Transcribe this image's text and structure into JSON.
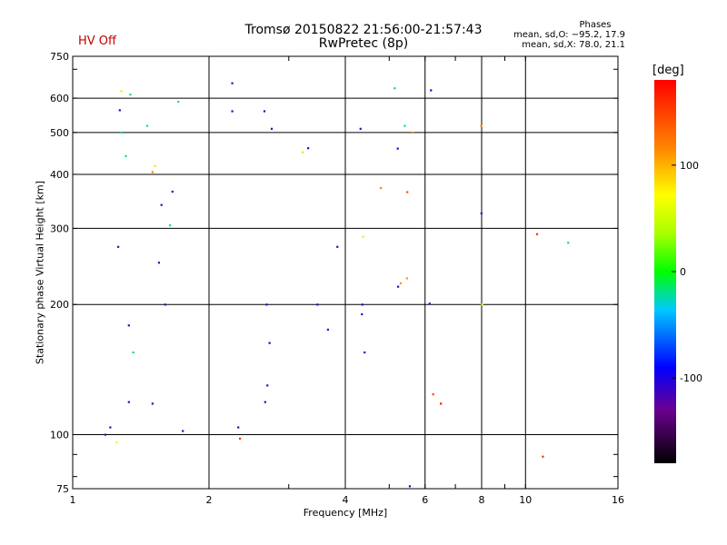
{
  "header": {
    "title": "Tromsø 20150822 21:56:00-21:57:43",
    "subtitle": "RwPretec (8p)",
    "hv_status": "HV Off",
    "hv_color": "#c00000"
  },
  "phases_info": {
    "heading": "Phases",
    "o_line": "mean, sd,O: −95.2, 17.9",
    "x_line": "mean, sd,X: 78.0, 21.1"
  },
  "chart_data": {
    "type": "scatter",
    "xlabel": "Frequency [MHz]",
    "ylabel": "Stationary phase Virtual Height [km]",
    "x_scale": "log",
    "y_scale": "log",
    "xlim": [
      1,
      16
    ],
    "ylim": [
      75,
      750
    ],
    "x_ticks": [
      1,
      2,
      4,
      6,
      8,
      10,
      16
    ],
    "y_ticks": [
      75,
      100,
      200,
      300,
      400,
      500,
      600,
      750
    ],
    "grid": true,
    "colorbar": {
      "label": "[deg]",
      "ticks": [
        100,
        0,
        -100
      ],
      "range": [
        -180,
        180
      ]
    },
    "series": [
      {
        "values": [
          {
            "x": 1.18,
            "y": 100,
            "phase": -110
          },
          {
            "x": 1.21,
            "y": 104,
            "phase": -110
          },
          {
            "x": 1.25,
            "y": 96,
            "phase": 60
          },
          {
            "x": 1.26,
            "y": 272,
            "phase": -120
          },
          {
            "x": 1.27,
            "y": 563,
            "phase": -110
          },
          {
            "x": 1.28,
            "y": 500,
            "phase": -15
          },
          {
            "x": 1.31,
            "y": 441,
            "phase": -15
          },
          {
            "x": 1.33,
            "y": 119,
            "phase": -110
          },
          {
            "x": 1.33,
            "y": 179,
            "phase": -110
          },
          {
            "x": 1.36,
            "y": 155,
            "phase": -15
          },
          {
            "x": 1.28,
            "y": 623,
            "phase": 80
          },
          {
            "x": 1.34,
            "y": 612,
            "phase": -15
          },
          {
            "x": 1.5,
            "y": 405,
            "phase": 120
          },
          {
            "x": 1.52,
            "y": 418,
            "phase": 80
          },
          {
            "x": 1.46,
            "y": 518,
            "phase": -15
          },
          {
            "x": 1.5,
            "y": 118,
            "phase": -110
          },
          {
            "x": 1.55,
            "y": 250,
            "phase": -110
          },
          {
            "x": 1.6,
            "y": 200,
            "phase": -110
          },
          {
            "x": 1.57,
            "y": 340,
            "phase": -110
          },
          {
            "x": 1.64,
            "y": 305,
            "phase": -15
          },
          {
            "x": 1.66,
            "y": 365,
            "phase": -110
          },
          {
            "x": 1.71,
            "y": 589,
            "phase": -15
          },
          {
            "x": 1.75,
            "y": 102,
            "phase": -110
          },
          {
            "x": 2.32,
            "y": 104,
            "phase": -110
          },
          {
            "x": 2.25,
            "y": 560,
            "phase": -110
          },
          {
            "x": 2.25,
            "y": 650,
            "phase": -110
          },
          {
            "x": 2.34,
            "y": 98,
            "phase": 160
          },
          {
            "x": 2.68,
            "y": 200,
            "phase": -110
          },
          {
            "x": 2.66,
            "y": 119,
            "phase": -110
          },
          {
            "x": 2.69,
            "y": 130,
            "phase": -110
          },
          {
            "x": 2.72,
            "y": 163,
            "phase": -110
          },
          {
            "x": 2.65,
            "y": 560,
            "phase": -110
          },
          {
            "x": 2.75,
            "y": 510,
            "phase": -110
          },
          {
            "x": 3.31,
            "y": 460,
            "phase": -110
          },
          {
            "x": 3.22,
            "y": 450,
            "phase": 40
          },
          {
            "x": 3.47,
            "y": 200,
            "phase": -110
          },
          {
            "x": 3.66,
            "y": 175,
            "phase": -110
          },
          {
            "x": 3.84,
            "y": 272,
            "phase": -110
          },
          {
            "x": 4.32,
            "y": 510,
            "phase": -110
          },
          {
            "x": 4.35,
            "y": 190,
            "phase": -110
          },
          {
            "x": 4.36,
            "y": 200,
            "phase": -110
          },
          {
            "x": 4.38,
            "y": 287,
            "phase": 80
          },
          {
            "x": 4.41,
            "y": 155,
            "phase": -110
          },
          {
            "x": 4.79,
            "y": 372,
            "phase": 120
          },
          {
            "x": 5.22,
            "y": 459,
            "phase": -110
          },
          {
            "x": 5.14,
            "y": 633,
            "phase": -15
          },
          {
            "x": 5.41,
            "y": 518,
            "phase": -15
          },
          {
            "x": 5.23,
            "y": 220,
            "phase": -110
          },
          {
            "x": 5.3,
            "y": 224,
            "phase": 110
          },
          {
            "x": 5.55,
            "y": 76,
            "phase": -110
          },
          {
            "x": 5.47,
            "y": 230,
            "phase": 110
          },
          {
            "x": 5.48,
            "y": 364,
            "phase": 140
          },
          {
            "x": 5.63,
            "y": 500,
            "phase": 110
          },
          {
            "x": 6.14,
            "y": 201,
            "phase": -110
          },
          {
            "x": 6.25,
            "y": 124,
            "phase": 150
          },
          {
            "x": 6.5,
            "y": 118,
            "phase": 170
          },
          {
            "x": 6.18,
            "y": 626,
            "phase": -110
          },
          {
            "x": 7.99,
            "y": 325,
            "phase": -110
          },
          {
            "x": 8.02,
            "y": 200,
            "phase": 60
          },
          {
            "x": 7.98,
            "y": 518,
            "phase": 120
          },
          {
            "x": 10.6,
            "y": 291,
            "phase": 160
          },
          {
            "x": 10.92,
            "y": 89,
            "phase": 160
          },
          {
            "x": 12.42,
            "y": 278,
            "phase": -15
          }
        ]
      }
    ]
  }
}
